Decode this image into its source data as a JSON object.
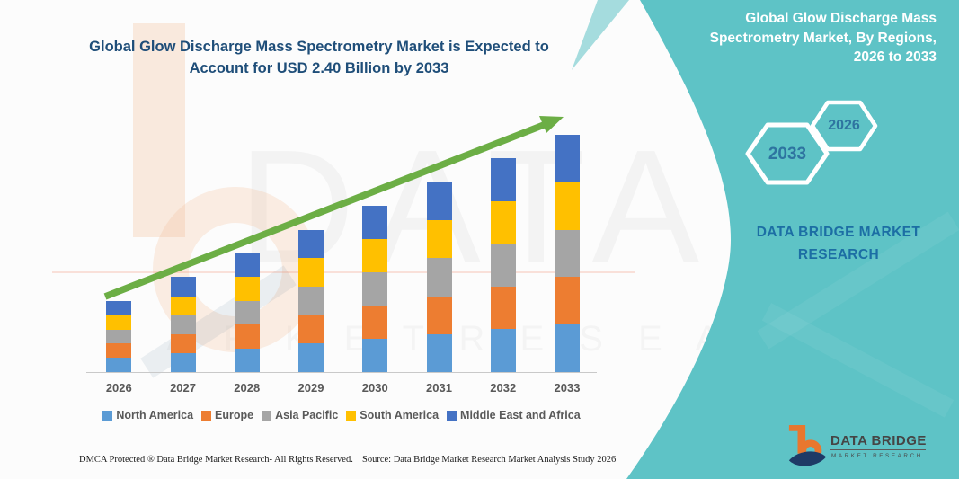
{
  "colors": {
    "teal": "#5EC3C6",
    "teal_light": "#8FD3D6",
    "title_navy": "#1F4E79",
    "arrow_green": "#6CAE45",
    "axis_gray": "#C9C9C9",
    "label_gray": "#595959",
    "hex_number_blue": "#2E74A0",
    "brand_blue": "#1C6EA4",
    "logo_orange": "#E8772E",
    "logo_navy": "#1E3A66"
  },
  "left_panel": {
    "title_lines": [
      "Global Glow Discharge Mass Spectrometry Market is Expected to",
      "Account for USD 2.40 Billion by 2033"
    ],
    "footer": {
      "dmca": "DMCA Protected ® Data Bridge Market Research-  All Rights Reserved.",
      "source": "Source: Data Bridge Market Research  Market Analysis Study 2026"
    }
  },
  "right_panel": {
    "title_lines": [
      "Global Glow Discharge Mass",
      "Spectrometry Market, By Regions,",
      "2026 to 2033"
    ],
    "hexagons": [
      {
        "label": "2033"
      },
      {
        "label": "2026"
      }
    ],
    "brand_lines": [
      "DATA BRIDGE MARKET",
      "RESEARCH"
    ],
    "logo": {
      "name": "DATA BRIDGE",
      "sub": "MARKET RESEARCH"
    }
  },
  "watermark": {
    "line1": "DATA BRIDGE",
    "line2": "M A R K E T   R E S E A R C H"
  },
  "chart_data": {
    "type": "bar",
    "stacked": true,
    "title": "Global Glow Discharge Mass Spectrometry Market is Expected to Account for USD 2.40 Billion by 2033",
    "unit": "USD billion",
    "categories": [
      "2026",
      "2027",
      "2028",
      "2029",
      "2030",
      "2031",
      "2032",
      "2033"
    ],
    "series": [
      {
        "name": "North America",
        "color": "#5B9BD5",
        "values": [
          0.144,
          0.192,
          0.24,
          0.288,
          0.336,
          0.384,
          0.432,
          0.48
        ]
      },
      {
        "name": "Europe",
        "color": "#ED7D31",
        "values": [
          0.144,
          0.192,
          0.24,
          0.288,
          0.336,
          0.384,
          0.432,
          0.48
        ]
      },
      {
        "name": "Asia Pacific",
        "color": "#A5A5A5",
        "values": [
          0.144,
          0.192,
          0.24,
          0.288,
          0.336,
          0.384,
          0.432,
          0.48
        ]
      },
      {
        "name": "South America",
        "color": "#FFC000",
        "values": [
          0.144,
          0.192,
          0.24,
          0.288,
          0.336,
          0.384,
          0.432,
          0.48
        ]
      },
      {
        "name": "Middle East and Africa",
        "color": "#4472C4",
        "values": [
          0.144,
          0.192,
          0.24,
          0.288,
          0.336,
          0.384,
          0.432,
          0.48
        ]
      }
    ],
    "totals": [
      0.72,
      0.96,
      1.2,
      1.44,
      1.68,
      1.92,
      2.16,
      2.4
    ],
    "ylim": [
      0,
      2.6
    ],
    "y_axis_visible": false,
    "grid": false,
    "legend_position": "bottom",
    "trend_arrow": true
  }
}
